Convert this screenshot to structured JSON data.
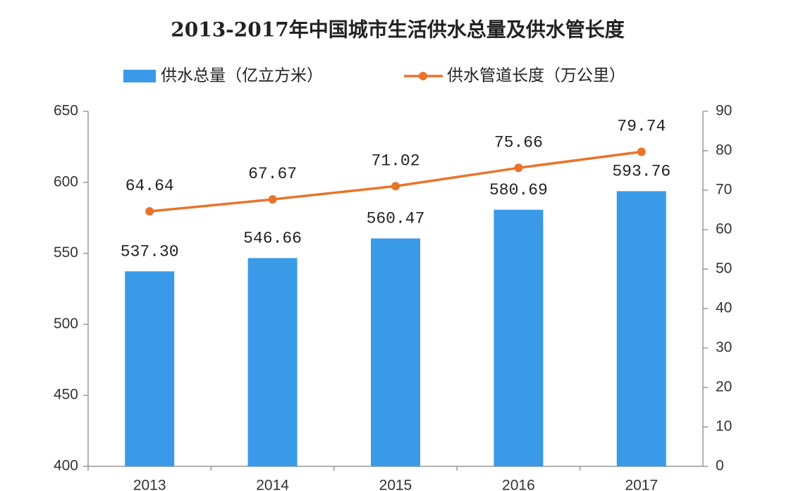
{
  "chart_data": {
    "type": "bar",
    "title": "2013-2017年中国城市生活供水总量及供水管长度",
    "categories": [
      "2013",
      "2014",
      "2015",
      "2016",
      "2017"
    ],
    "series": [
      {
        "name": "供水总量（亿立方米）",
        "type": "bar",
        "color": "#3a9ae8",
        "values": [
          537.3,
          546.66,
          560.47,
          580.69,
          593.76
        ],
        "value_labels": [
          "537.30",
          "546.66",
          "560.47",
          "580.69",
          "593.76"
        ]
      },
      {
        "name": "供水管道长度（万公里）",
        "type": "line",
        "axis": "y2",
        "color": "#e8742a",
        "values": [
          64.64,
          67.67,
          71.02,
          75.66,
          79.74
        ]
      }
    ],
    "ylim": [
      400,
      650
    ],
    "yticks": [
      400,
      450,
      500,
      550,
      600,
      650
    ],
    "y2lim": [
      0,
      90
    ],
    "y2ticks": [
      0,
      10,
      20,
      30,
      40,
      50,
      60,
      70,
      80,
      90
    ],
    "legend": "top"
  }
}
